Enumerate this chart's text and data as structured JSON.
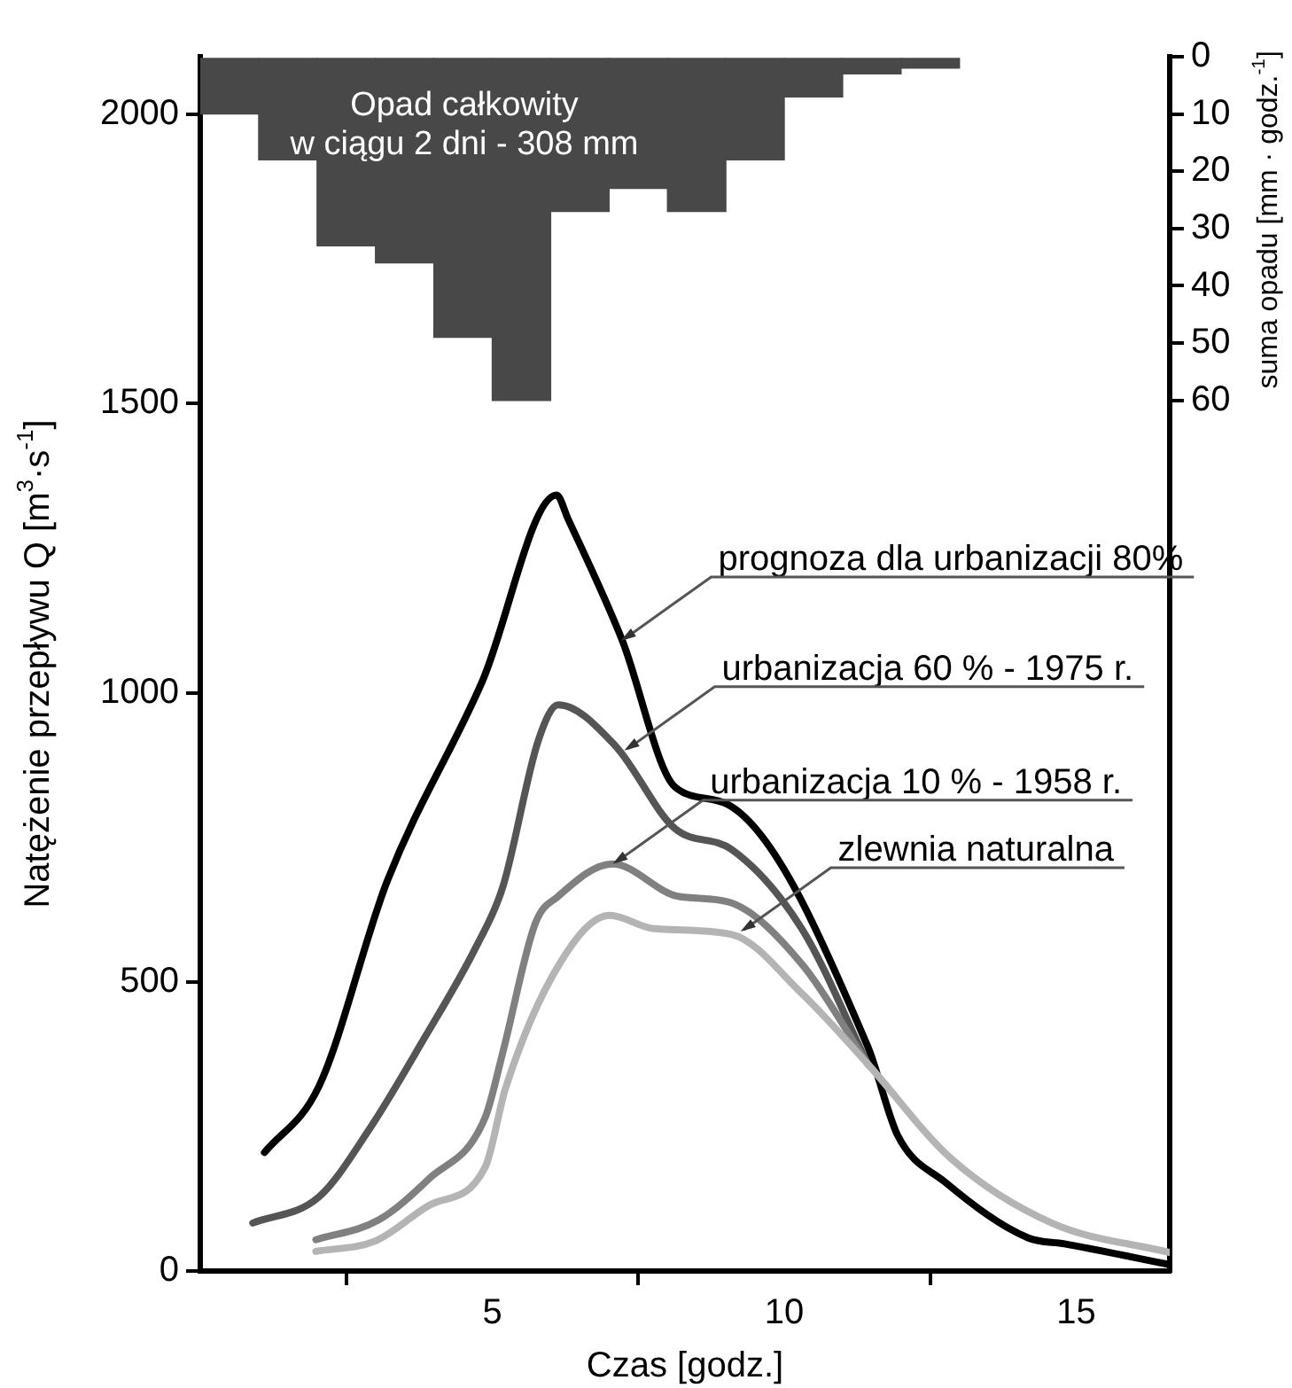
{
  "chart_data": {
    "type": "line",
    "xlabel": "Czas [godz.]",
    "ylabel": "Natężenie przepływu Q [m$^{3}$·s$^{-1}$]",
    "y2label": "suma opadu [mm · godz.$^{-1}$]",
    "xlim": [
      0,
      16.6
    ],
    "xticks": [
      5,
      10,
      15
    ],
    "ylim": [
      0,
      2100
    ],
    "yticks": [
      0,
      500,
      1000,
      1500,
      2000
    ],
    "y2lim": [
      212,
      0
    ],
    "y2ticks": [
      0,
      10,
      20,
      30,
      40,
      50,
      60
    ],
    "grid": false,
    "legend": false,
    "series": [
      {
        "type": "bar",
        "axis": "y2",
        "color": "#484848",
        "x": [
          0.5,
          1.5,
          2.5,
          3.5,
          4.5,
          5.5,
          6.5,
          7.5,
          8.5,
          9.5,
          10.5,
          11.5,
          12.5
        ],
        "values": [
          10,
          18,
          33,
          36,
          49,
          60,
          27,
          23,
          27,
          18,
          7,
          3,
          2
        ]
      },
      {
        "color": "#b4b4b4",
        "x": [
          1.98,
          3.0,
          3.91,
          4.88,
          5.23,
          6.15,
          7.01,
          7.77,
          9.1,
          10.3,
          11.43,
          12.85,
          14.58,
          16.6
        ],
        "values": [
          34,
          52,
          113,
          180,
          317,
          531,
          615,
          592,
          582,
          480,
          358,
          195,
          83,
          32
        ]
      },
      {
        "color": "#808080",
        "x": [
          1.98,
          3.05,
          3.91,
          4.88,
          5.18,
          5.74,
          6.13,
          7.06,
          8.18,
          9.05,
          10.3,
          11.43
        ],
        "values": [
          54,
          88,
          159,
          266,
          378,
          602,
          648,
          704,
          648,
          638,
          531,
          358
        ]
      },
      {
        "color": "#555555",
        "x": [
          0.9,
          2.03,
          2.9,
          3.81,
          4.73,
          5.18,
          5.79,
          6.13,
          7.11,
          8.13,
          9.1,
          10.3,
          11.43
        ],
        "values": [
          83,
          128,
          246,
          398,
          562,
          664,
          918,
          979,
          908,
          765,
          729,
          592,
          358
        ]
      },
      {
        "color": "#000000",
        "x": [
          1.1,
          2.03,
          3.2,
          4.83,
          6.1,
          6.3,
          7.22,
          8.13,
          9.05,
          11.43,
          11.94,
          12.75,
          14.18,
          14.8,
          16.6
        ],
        "values": [
          205,
          319,
          674,
          1020,
          1342,
          1300,
          1092,
          837,
          806,
          388,
          235,
          154,
          57,
          47,
          11
        ]
      }
    ],
    "annotations": [
      "Opad całkowity\nw ciągu 2 dni - 308 mm",
      {
        "text": "prognoza dla urbanizacji 80%",
        "x": 7.2,
        "y": 1090
      },
      {
        "text": "urbanizacja 60 % - 1975 r.",
        "x": 7.26,
        "y": 900
      },
      {
        "text": "urbanizacja 10 % - 1958 r.",
        "x": 7.06,
        "y": 704
      },
      {
        "text": "zlewnia naturalna",
        "x": 9.25,
        "y": 587
      }
    ]
  }
}
